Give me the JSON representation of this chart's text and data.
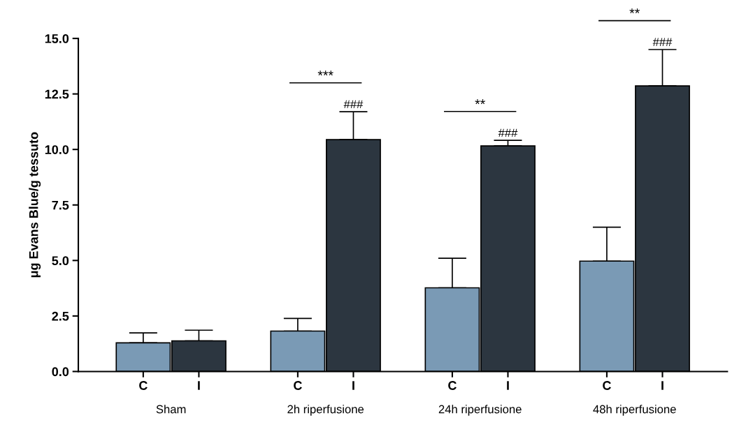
{
  "chart_data": {
    "type": "bar",
    "ylabel": "μg Evans Blue/g tessuto",
    "categories": [
      "Sham",
      "2h riperfusione",
      "24h riperfusione",
      "48h riperfusione"
    ],
    "series": [
      {
        "name": "C",
        "color": "#7a9ab5",
        "values": [
          1.29,
          1.82,
          3.77,
          4.97
        ],
        "errors": [
          0.45,
          0.57,
          1.33,
          1.53
        ]
      },
      {
        "name": "I",
        "color": "#2c3640",
        "values": [
          1.38,
          10.44,
          10.16,
          12.86
        ],
        "errors": [
          0.48,
          1.26,
          0.25,
          1.64
        ]
      }
    ],
    "ylim": [
      0,
      15
    ],
    "yticks": [
      {
        "value": 0,
        "label": "0.0"
      },
      {
        "value": 2.5,
        "label": "2.5"
      },
      {
        "value": 5,
        "label": "5.0"
      },
      {
        "value": 7.5,
        "label": "7.5"
      },
      {
        "value": 10,
        "label": "10.0"
      },
      {
        "value": 12.5,
        "label": "12.5"
      },
      {
        "value": 15,
        "label": "15.0"
      }
    ],
    "annotations": [
      "***",
      "**",
      "**",
      "###",
      "###",
      "###"
    ],
    "grid": false,
    "legend": "bottom"
  }
}
